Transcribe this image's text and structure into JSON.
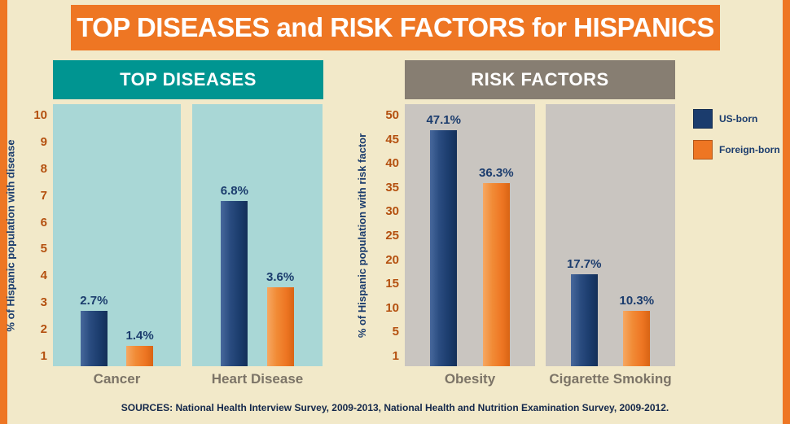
{
  "title": "TOP DISEASES and RISK FACTORS for HISPANICS",
  "legend": {
    "items": [
      {
        "label": "US-born",
        "color": "#1b3c6d"
      },
      {
        "label": "Foreign-born",
        "color": "#ee7623"
      }
    ]
  },
  "footer": {
    "sources": "SOURCES: National Health Interview Survey, 2009-2013, National Health and Nutrition Examination Survey, 2009-2012."
  },
  "colors": {
    "background": "#f2e9c9",
    "accent_orange": "#ee7623",
    "navy": "#1b3c6d",
    "teal_header": "#009591",
    "teal_panel": "#a9d7d6",
    "gray_header": "#877e72",
    "gray_panel": "#c9c5c0",
    "axis_number": "#b4500f",
    "category_label": "#7c7467"
  },
  "chart_data": [
    {
      "type": "bar",
      "title": "TOP DISEASES",
      "ylabel": "% of Hispanic population with disease",
      "categories": [
        "Cancer",
        "Heart Disease"
      ],
      "series": [
        {
          "name": "US-born",
          "values": [
            2.7,
            6.8
          ]
        },
        {
          "name": "Foreign-born",
          "values": [
            1.4,
            3.6
          ]
        }
      ],
      "value_labels": [
        [
          "2.7%",
          "6.8%"
        ],
        [
          "1.4%",
          "3.6%"
        ]
      ],
      "yticks": [
        10,
        9,
        8,
        7,
        6,
        5,
        4,
        3,
        2,
        1
      ],
      "ylim": [
        1,
        10
      ],
      "grid": false,
      "legend_position": "right"
    },
    {
      "type": "bar",
      "title": "RISK FACTORS",
      "ylabel": "% of Hispanic population with risk factor",
      "categories": [
        "Obesity",
        "Cigarette Smoking"
      ],
      "series": [
        {
          "name": "US-born",
          "values": [
            47.1,
            17.7
          ]
        },
        {
          "name": "Foreign-born",
          "values": [
            36.3,
            10.3
          ]
        }
      ],
      "value_labels": [
        [
          "47.1%",
          "17.7%"
        ],
        [
          "36.3%",
          "10.3%"
        ]
      ],
      "yticks": [
        50,
        45,
        40,
        35,
        30,
        25,
        20,
        15,
        10,
        5,
        1
      ],
      "ylim": [
        1,
        50
      ],
      "grid": false,
      "legend_position": "right"
    }
  ]
}
